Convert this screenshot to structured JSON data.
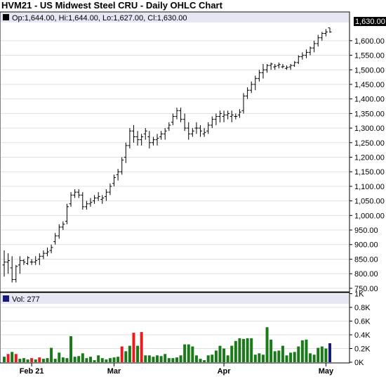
{
  "chart_title": "HVM21 - US Midwest Steel CRU - Daily OHLC Chart",
  "price_header": "Op:1,644.00, Hi:1,644.00, Lo:1,627.00, Cl:1,630.00",
  "volume_header": "Vol: 277",
  "last_price_label": "1,630.00",
  "colors": {
    "up": "#1a7a1a",
    "down": "#e81c1c",
    "unchanged": "#1a1a7a",
    "grid": "#e0e0e0",
    "header_bg": "#e6e6f5"
  },
  "chart_data": [
    {
      "type": "ohlc",
      "title": "HVM21 - US Midwest Steel CRU - Daily OHLC Chart",
      "ylim": [
        740,
        1660
      ],
      "y_ticks": [
        "750.00",
        "800.00",
        "850.00",
        "900.00",
        "950.00",
        "1,000.00",
        "1,050.00",
        "1,100.00",
        "1,150.00",
        "1,200.00",
        "1,250.00",
        "1,300.00",
        "1,350.00",
        "1,400.00",
        "1,450.00",
        "1,500.00",
        "1,550.00",
        "1,600.00"
      ],
      "x_ticks": [
        {
          "label": "Feb 21",
          "index": 7
        },
        {
          "label": "Mar",
          "index": 28
        },
        {
          "label": "Apr",
          "index": 56
        },
        {
          "label": "May",
          "index": 82
        }
      ],
      "bars": [
        [
          830,
          880,
          790,
          840
        ],
        [
          840,
          870,
          800,
          845
        ],
        [
          820,
          860,
          770,
          780
        ],
        [
          780,
          830,
          770,
          825
        ],
        [
          830,
          860,
          800,
          845
        ],
        [
          845,
          850,
          830,
          840
        ],
        [
          835,
          860,
          830,
          855
        ],
        [
          840,
          850,
          830,
          840
        ],
        [
          840,
          860,
          830,
          845
        ],
        [
          850,
          870,
          830,
          860
        ],
        [
          860,
          880,
          850,
          870
        ],
        [
          870,
          890,
          860,
          875
        ],
        [
          880,
          900,
          870,
          890
        ],
        [
          910,
          940,
          900,
          930
        ],
        [
          930,
          970,
          920,
          960
        ],
        [
          960,
          980,
          950,
          970
        ],
        [
          980,
          1040,
          970,
          1030
        ],
        [
          1040,
          1080,
          1030,
          1070
        ],
        [
          1070,
          1090,
          1060,
          1080
        ],
        [
          1080,
          1090,
          1060,
          1070
        ],
        [
          1070,
          1080,
          1020,
          1030
        ],
        [
          1030,
          1050,
          1020,
          1040
        ],
        [
          1040,
          1060,
          1030,
          1045
        ],
        [
          1050,
          1070,
          1040,
          1060
        ],
        [
          1060,
          1080,
          1050,
          1065
        ],
        [
          1055,
          1070,
          1040,
          1060
        ],
        [
          1065,
          1090,
          1050,
          1080
        ],
        [
          1080,
          1110,
          1070,
          1100
        ],
        [
          1110,
          1140,
          1100,
          1130
        ],
        [
          1140,
          1160,
          1120,
          1150
        ],
        [
          1150,
          1200,
          1140,
          1190
        ],
        [
          1200,
          1250,
          1180,
          1240
        ],
        [
          1240,
          1300,
          1230,
          1290
        ],
        [
          1290,
          1310,
          1250,
          1270
        ],
        [
          1270,
          1290,
          1240,
          1260
        ],
        [
          1260,
          1280,
          1240,
          1270
        ],
        [
          1280,
          1300,
          1260,
          1290
        ],
        [
          1270,
          1290,
          1230,
          1250
        ],
        [
          1250,
          1270,
          1240,
          1260
        ],
        [
          1260,
          1280,
          1240,
          1265
        ],
        [
          1270,
          1290,
          1260,
          1280
        ],
        [
          1280,
          1300,
          1260,
          1290
        ],
        [
          1300,
          1320,
          1290,
          1310
        ],
        [
          1320,
          1350,
          1310,
          1340
        ],
        [
          1340,
          1370,
          1330,
          1360
        ],
        [
          1360,
          1370,
          1320,
          1330
        ],
        [
          1330,
          1350,
          1290,
          1300
        ],
        [
          1300,
          1320,
          1260,
          1280
        ],
        [
          1280,
          1300,
          1270,
          1290
        ],
        [
          1300,
          1320,
          1280,
          1300
        ],
        [
          1300,
          1310,
          1270,
          1290
        ],
        [
          1280,
          1300,
          1270,
          1285
        ],
        [
          1290,
          1320,
          1280,
          1310
        ],
        [
          1310,
          1340,
          1300,
          1330
        ],
        [
          1330,
          1350,
          1310,
          1340
        ],
        [
          1340,
          1360,
          1320,
          1350
        ],
        [
          1340,
          1360,
          1320,
          1345
        ],
        [
          1345,
          1360,
          1330,
          1350
        ],
        [
          1340,
          1360,
          1320,
          1345
        ],
        [
          1340,
          1350,
          1330,
          1340
        ],
        [
          1345,
          1365,
          1335,
          1355
        ],
        [
          1360,
          1420,
          1350,
          1410
        ],
        [
          1410,
          1440,
          1400,
          1430
        ],
        [
          1430,
          1460,
          1420,
          1450
        ],
        [
          1450,
          1480,
          1430,
          1470
        ],
        [
          1470,
          1500,
          1460,
          1490
        ],
        [
          1490,
          1520,
          1470,
          1500
        ],
        [
          1500,
          1520,
          1490,
          1515
        ],
        [
          1515,
          1525,
          1500,
          1520
        ],
        [
          1510,
          1520,
          1500,
          1512
        ],
        [
          1515,
          1525,
          1505,
          1518
        ],
        [
          1510,
          1520,
          1505,
          1512
        ],
        [
          1505,
          1515,
          1500,
          1508
        ],
        [
          1510,
          1520,
          1500,
          1515
        ],
        [
          1515,
          1530,
          1510,
          1525
        ],
        [
          1525,
          1550,
          1520,
          1545
        ],
        [
          1545,
          1560,
          1535,
          1550
        ],
        [
          1550,
          1570,
          1540,
          1560
        ],
        [
          1560,
          1580,
          1550,
          1575
        ],
        [
          1575,
          1600,
          1560,
          1590
        ],
        [
          1590,
          1620,
          1580,
          1610
        ],
        [
          1610,
          1630,
          1600,
          1625
        ],
        [
          1625,
          1640,
          1615,
          1630
        ],
        [
          1644,
          1644,
          1627,
          1630
        ]
      ]
    },
    {
      "type": "bar",
      "title": "Volume",
      "ylim": [
        0,
        800
      ],
      "y_ticks": [
        "0K",
        "0.2K",
        "0.4K",
        "0.6K",
        "0.8K",
        "1K"
      ],
      "y_tick_values": [
        0,
        200,
        400,
        600,
        800,
        1000
      ],
      "values": [
        80,
        120,
        150,
        120,
        50,
        60,
        40,
        60,
        40,
        70,
        50,
        60,
        210,
        50,
        140,
        70,
        60,
        380,
        80,
        90,
        130,
        60,
        80,
        30,
        100,
        60,
        40,
        60,
        70,
        80,
        230,
        160,
        240,
        430,
        240,
        440,
        100,
        100,
        80,
        100,
        90,
        120,
        60,
        60,
        70,
        100,
        260,
        260,
        230,
        100,
        50,
        30,
        100,
        110,
        170,
        240,
        200,
        100,
        240,
        310,
        350,
        340,
        350,
        350,
        110,
        130,
        110,
        510,
        330,
        160,
        170,
        240,
        100,
        140,
        150,
        230,
        320,
        330,
        130,
        110,
        210,
        230,
        200,
        277
      ],
      "colors": [
        "up",
        "down",
        "up",
        "down",
        "up",
        "up",
        "up",
        "down",
        "up",
        "down",
        "up",
        "up",
        "up",
        "up",
        "up",
        "up",
        "up",
        "up",
        "up",
        "up",
        "up",
        "up",
        "up",
        "up",
        "up",
        "up",
        "up",
        "up",
        "up",
        "up",
        "down",
        "up",
        "up",
        "down",
        "up",
        "down",
        "up",
        "up",
        "up",
        "up",
        "up",
        "up",
        "up",
        "up",
        "up",
        "up",
        "up",
        "up",
        "up",
        "up",
        "up",
        "up",
        "up",
        "up",
        "up",
        "up",
        "up",
        "up",
        "up",
        "up",
        "up",
        "up",
        "up",
        "up",
        "up",
        "up",
        "up",
        "up",
        "up",
        "up",
        "up",
        "up",
        "up",
        "up",
        "up",
        "up",
        "up",
        "up",
        "up",
        "up",
        "up",
        "up",
        "up",
        "unchanged"
      ]
    }
  ]
}
